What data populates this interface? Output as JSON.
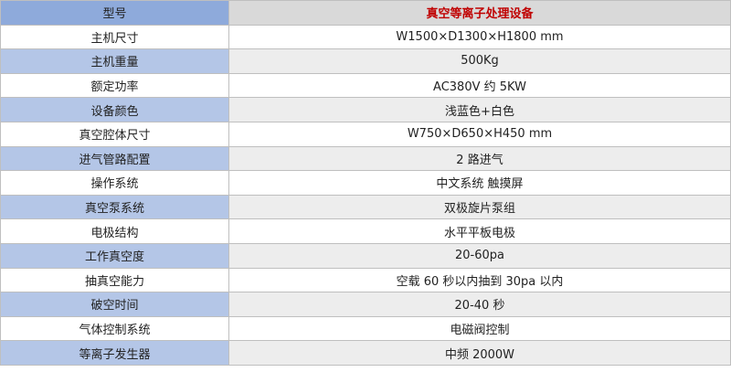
{
  "header": {
    "label": "型号",
    "value": "真空等离子处理设备"
  },
  "rows": [
    {
      "label": "主机尺寸",
      "value": "W1500×D1300×H1800 mm"
    },
    {
      "label": "主机重量",
      "value": "500Kg"
    },
    {
      "label": "额定功率",
      "value": "AC380V  约 5KW"
    },
    {
      "label": "设备颜色",
      "value": "浅蓝色+白色"
    },
    {
      "label": "真空腔体尺寸",
      "value": "W750×D650×H450 mm"
    },
    {
      "label": "进气管路配置",
      "value": "2 路进气"
    },
    {
      "label": "操作系统",
      "value": "中文系统  触摸屏"
    },
    {
      "label": "真空泵系统",
      "value": "双极旋片泵组"
    },
    {
      "label": "电极结构",
      "value": "水平平板电极"
    },
    {
      "label": "工作真空度",
      "value": "20-60pa"
    },
    {
      "label": "抽真空能力",
      "value": "空载 60 秒以内抽到 30pa 以内"
    },
    {
      "label": "破空时间",
      "value": "20-40 秒"
    },
    {
      "label": "气体控制系统",
      "value": "电磁阀控制"
    },
    {
      "label": "等离子发生器",
      "value": "中频 2000W"
    }
  ],
  "colors": {
    "header_left": "#8eaadb",
    "header_right": "#d9d9d9",
    "header_text": "#c00000",
    "alt_left": "#b4c6e7",
    "alt_right": "#ededed"
  }
}
